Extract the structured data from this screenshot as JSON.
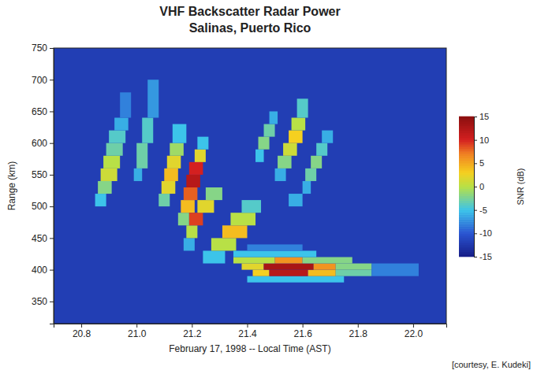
{
  "chart_data": {
    "type": "heatmap",
    "title": "VHF Backscatter Radar Power",
    "subtitle": "Salinas, Puerto Rico",
    "x_label": "February 17, 1998 -- Local Time (AST)",
    "y_label": "Range (km)",
    "annotation": "[courtesy, E. Kudeki]",
    "xlim": [
      20.7,
      22.12
    ],
    "ylim": [
      315,
      750
    ],
    "xticks": [
      20.8,
      {
        "value": 21,
        "label": "21.0"
      },
      21.2,
      21.4,
      21.6,
      21.8,
      {
        "value": 22,
        "label": "22.0"
      }
    ],
    "yticks": [
      350,
      400,
      450,
      500,
      550,
      600,
      650,
      700,
      750
    ],
    "background_snr": -12,
    "colorbar": {
      "label": "SNR (dB)",
      "range": [
        -15,
        15
      ],
      "ticks": [
        -15,
        -10,
        -5,
        0,
        5,
        10,
        15
      ]
    },
    "patches": [
      [
        20.85,
        20.89,
        500,
        520,
        -5
      ],
      [
        20.86,
        20.91,
        520,
        540,
        -2
      ],
      [
        20.87,
        20.93,
        540,
        560,
        1
      ],
      [
        20.88,
        20.94,
        560,
        580,
        0
      ],
      [
        20.89,
        20.95,
        580,
        600,
        -3
      ],
      [
        20.9,
        20.96,
        600,
        620,
        -4
      ],
      [
        20.92,
        20.97,
        620,
        640,
        -6
      ],
      [
        20.94,
        20.98,
        640,
        680,
        -8
      ],
      [
        20.99,
        21.02,
        540,
        560,
        -6
      ],
      [
        21.0,
        21.04,
        560,
        600,
        -3
      ],
      [
        21.02,
        21.06,
        600,
        640,
        -4
      ],
      [
        21.04,
        21.08,
        640,
        700,
        -7
      ],
      [
        21.08,
        21.12,
        500,
        520,
        -3
      ],
      [
        21.09,
        21.14,
        520,
        540,
        2
      ],
      [
        21.1,
        21.15,
        540,
        560,
        4
      ],
      [
        21.11,
        21.16,
        560,
        580,
        2
      ],
      [
        21.12,
        21.17,
        580,
        600,
        -1
      ],
      [
        21.13,
        21.18,
        600,
        630,
        -5
      ],
      [
        21.15,
        21.19,
        470,
        490,
        -2
      ],
      [
        21.16,
        21.21,
        490,
        510,
        4
      ],
      [
        21.17,
        21.22,
        510,
        530,
        8
      ],
      [
        21.18,
        21.23,
        530,
        550,
        12
      ],
      [
        21.19,
        21.24,
        550,
        570,
        10
      ],
      [
        21.21,
        21.25,
        570,
        590,
        2
      ],
      [
        21.22,
        21.26,
        590,
        610,
        -5
      ],
      [
        21.17,
        21.21,
        430,
        450,
        -6
      ],
      [
        21.18,
        21.22,
        450,
        470,
        0
      ],
      [
        21.19,
        21.24,
        470,
        490,
        9
      ],
      [
        21.22,
        21.28,
        490,
        510,
        2
      ],
      [
        21.25,
        21.31,
        510,
        530,
        -2
      ],
      [
        21.24,
        21.32,
        410,
        430,
        -5
      ],
      [
        21.27,
        21.36,
        430,
        450,
        0
      ],
      [
        21.31,
        21.4,
        450,
        470,
        4
      ],
      [
        21.34,
        21.43,
        470,
        490,
        0
      ],
      [
        21.38,
        21.45,
        490,
        510,
        -4
      ],
      [
        21.4,
        21.75,
        380,
        390,
        -5
      ],
      [
        21.42,
        21.48,
        390,
        400,
        3
      ],
      [
        21.48,
        21.62,
        390,
        400,
        12
      ],
      [
        21.62,
        21.72,
        390,
        400,
        4
      ],
      [
        21.72,
        21.85,
        390,
        400,
        -3
      ],
      [
        21.38,
        21.46,
        400,
        410,
        2
      ],
      [
        21.46,
        21.64,
        400,
        410,
        13
      ],
      [
        21.64,
        21.72,
        400,
        410,
        6
      ],
      [
        21.72,
        21.85,
        400,
        410,
        -2
      ],
      [
        21.35,
        21.5,
        410,
        420,
        0
      ],
      [
        21.5,
        21.6,
        410,
        420,
        6
      ],
      [
        21.6,
        21.78,
        410,
        420,
        -2
      ],
      [
        21.35,
        21.65,
        420,
        430,
        -5
      ],
      [
        21.4,
        21.6,
        430,
        440,
        -8
      ],
      [
        21.85,
        22.02,
        390,
        410,
        -8
      ],
      [
        21.43,
        21.46,
        570,
        590,
        -5
      ],
      [
        21.44,
        21.48,
        590,
        610,
        -2
      ],
      [
        21.46,
        21.5,
        610,
        630,
        -3
      ],
      [
        21.48,
        21.51,
        630,
        650,
        -6
      ],
      [
        21.5,
        21.54,
        540,
        560,
        -6
      ],
      [
        21.51,
        21.56,
        560,
        580,
        -2
      ],
      [
        21.53,
        21.58,
        580,
        600,
        1
      ],
      [
        21.55,
        21.6,
        600,
        620,
        3
      ],
      [
        21.56,
        21.61,
        620,
        640,
        0
      ],
      [
        21.58,
        21.62,
        640,
        670,
        -4
      ],
      [
        21.6,
        21.63,
        520,
        540,
        -6
      ],
      [
        21.61,
        21.65,
        540,
        560,
        -3
      ],
      [
        21.63,
        21.67,
        560,
        580,
        -2
      ],
      [
        21.65,
        21.69,
        580,
        600,
        -4
      ],
      [
        21.67,
        21.71,
        600,
        620,
        -6
      ],
      [
        21.55,
        21.6,
        500,
        520,
        -6
      ]
    ]
  }
}
